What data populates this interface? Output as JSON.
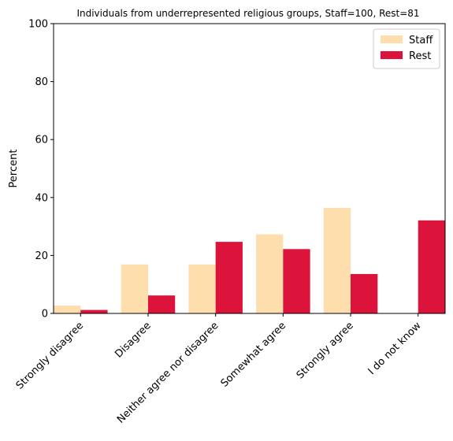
{
  "chart_data": {
    "type": "bar",
    "title": "Individuals from underrepresented religious groups, Staff=100, Rest=81",
    "ylabel": "Percent",
    "xlabel": "",
    "ylim": [
      0,
      100
    ],
    "yticks": [
      0,
      20,
      40,
      60,
      80,
      100
    ],
    "grid": false,
    "legend_position": "top-right",
    "categories": [
      "Strongly disagree",
      "Disagree",
      "Neither agree nor disagree",
      "Somewhat agree",
      "Strongly agree",
      "I do not know"
    ],
    "series": [
      {
        "name": "Staff",
        "color": "#FFDEAD",
        "values": [
          2.7,
          16.9,
          16.9,
          27.3,
          36.4,
          0
        ]
      },
      {
        "name": "Rest",
        "color": "#DC143C",
        "values": [
          1.2,
          6.2,
          24.7,
          22.2,
          13.6,
          32.1
        ]
      }
    ]
  }
}
